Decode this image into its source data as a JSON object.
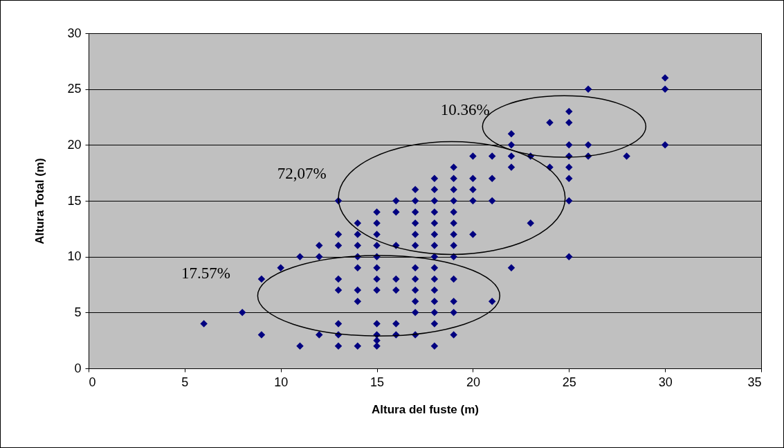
{
  "chart_data": {
    "type": "scatter",
    "xlabel": "Altura del fuste (m)",
    "ylabel": "Altura Total (m)",
    "x": [
      6,
      8,
      9,
      9,
      10,
      11,
      11,
      12,
      12,
      12,
      13,
      13,
      13,
      13,
      13,
      13,
      13,
      13,
      14,
      14,
      14,
      14,
      14,
      14,
      14,
      14,
      15,
      15,
      15,
      15,
      15,
      15,
      15,
      15,
      15,
      15,
      15,
      15,
      16,
      16,
      16,
      16,
      16,
      16,
      16,
      17,
      17,
      17,
      17,
      17,
      17,
      17,
      17,
      17,
      17,
      17,
      17,
      18,
      18,
      18,
      18,
      18,
      18,
      18,
      18,
      18,
      18,
      18,
      18,
      18,
      18,
      18,
      19,
      19,
      19,
      19,
      19,
      19,
      19,
      19,
      19,
      19,
      19,
      19,
      19,
      20,
      20,
      20,
      20,
      20,
      21,
      21,
      21,
      21,
      22,
      22,
      22,
      22,
      22,
      23,
      23,
      24,
      24,
      25,
      25,
      25,
      25,
      25,
      25,
      25,
      25,
      26,
      26,
      26,
      28,
      30,
      30,
      30
    ],
    "values": [
      4,
      5,
      8,
      3,
      9,
      10,
      2,
      11,
      10,
      3,
      15,
      12,
      11,
      8,
      7,
      4,
      3,
      2,
      13,
      12,
      11,
      10,
      9,
      7,
      6,
      2,
      14,
      13,
      12,
      11,
      10,
      9,
      8,
      7,
      4,
      3,
      2.5,
      2,
      15,
      14,
      11,
      8,
      7,
      4,
      3,
      16,
      15,
      14,
      13,
      12,
      11,
      9,
      8,
      7,
      6,
      5,
      3,
      17,
      16,
      15,
      14,
      13,
      12,
      11,
      10,
      9,
      8,
      7,
      6,
      5,
      4,
      2,
      18,
      17,
      16,
      15,
      14,
      13,
      12,
      11,
      10,
      8,
      6,
      5,
      3,
      19,
      17,
      16,
      15,
      12,
      19,
      17,
      15,
      6,
      21,
      20,
      19,
      18,
      9,
      19,
      13,
      22,
      18,
      23,
      22,
      20,
      19,
      18,
      17,
      15,
      10,
      25,
      20,
      19,
      19,
      26,
      25,
      20
    ],
    "color": "#000080",
    "marker": "diamond",
    "xlim": [
      0,
      35
    ],
    "xticks": [
      0,
      5,
      10,
      15,
      20,
      25,
      30,
      35
    ],
    "ylim": [
      0,
      30
    ],
    "yticks": [
      0,
      5,
      10,
      15,
      20,
      25,
      30
    ],
    "grid": "y",
    "annotations": [
      "17.57%",
      "72,07%",
      "10.36%"
    ]
  }
}
